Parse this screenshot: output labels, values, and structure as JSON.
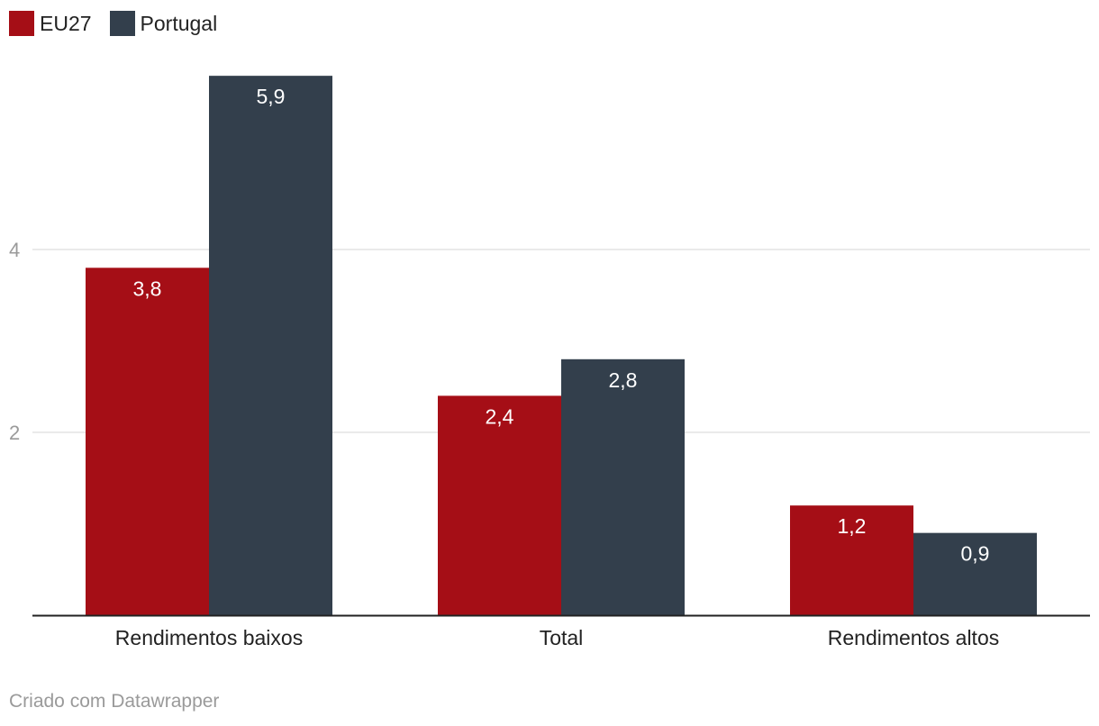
{
  "legend": [
    {
      "label": "EU27",
      "color": "#a50e16"
    },
    {
      "label": "Portugal",
      "color": "#333f4c"
    }
  ],
  "footer": {
    "credit": "Criado com Datawrapper"
  },
  "chart_data": {
    "type": "bar",
    "categories": [
      "Rendimentos baixos",
      "Total",
      "Rendimentos altos"
    ],
    "series": [
      {
        "name": "EU27",
        "color": "#a50e16",
        "values": [
          3.8,
          2.4,
          1.2
        ],
        "labels": [
          "3,8",
          "2,4",
          "1,2"
        ]
      },
      {
        "name": "Portugal",
        "color": "#333f4c",
        "values": [
          5.9,
          2.8,
          0.9
        ],
        "labels": [
          "5,9",
          "2,8",
          "0,9"
        ]
      }
    ],
    "yticks": [
      2,
      4
    ],
    "ylim": [
      0,
      5.9
    ],
    "grid": true,
    "legend_position": "top-left",
    "title": "",
    "xlabel": "",
    "ylabel": ""
  }
}
